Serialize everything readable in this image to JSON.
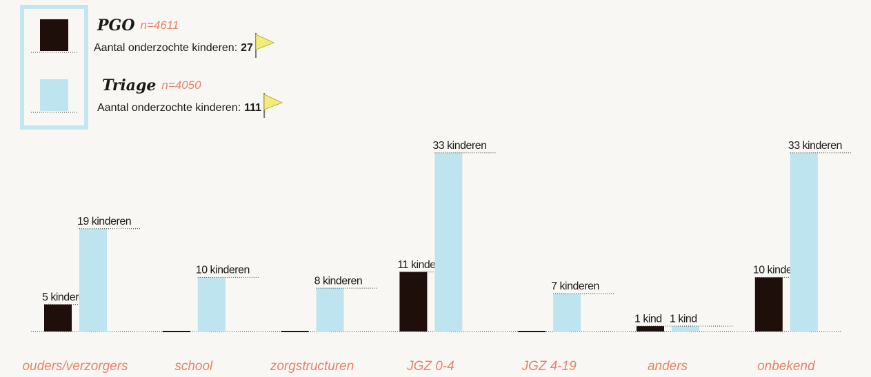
{
  "chart_data": {
    "type": "bar",
    "categories": [
      "ouders/verzorgers",
      "school",
      "zorgstructuren",
      "JGZ 0-4",
      "JGZ 4-19",
      "anders",
      "onbekend"
    ],
    "series": [
      {
        "name": "PGO",
        "n_label": "n=4611",
        "note": "Aantal onderzochte kinderen:",
        "examined": 27,
        "color": "#1e0f0b",
        "values": [
          5,
          0,
          0,
          11,
          0,
          1,
          10
        ],
        "value_labels": [
          "5 kinderen",
          null,
          null,
          "11 kinderen",
          null,
          "1 kind",
          "10 kinderen"
        ]
      },
      {
        "name": "Triage",
        "n_label": "n=4050",
        "note": "Aantal onderzochte kinderen:",
        "examined": 111,
        "color": "#bde4ef",
        "values": [
          19,
          10,
          8,
          33,
          7,
          1,
          33
        ],
        "value_labels": [
          "19 kinderen",
          "10 kinderen",
          "8 kinderen",
          "33 kinderen",
          "7 kinderen",
          "1 kind",
          "33 kinderen"
        ]
      }
    ],
    "ylim": [
      0,
      35
    ]
  }
}
